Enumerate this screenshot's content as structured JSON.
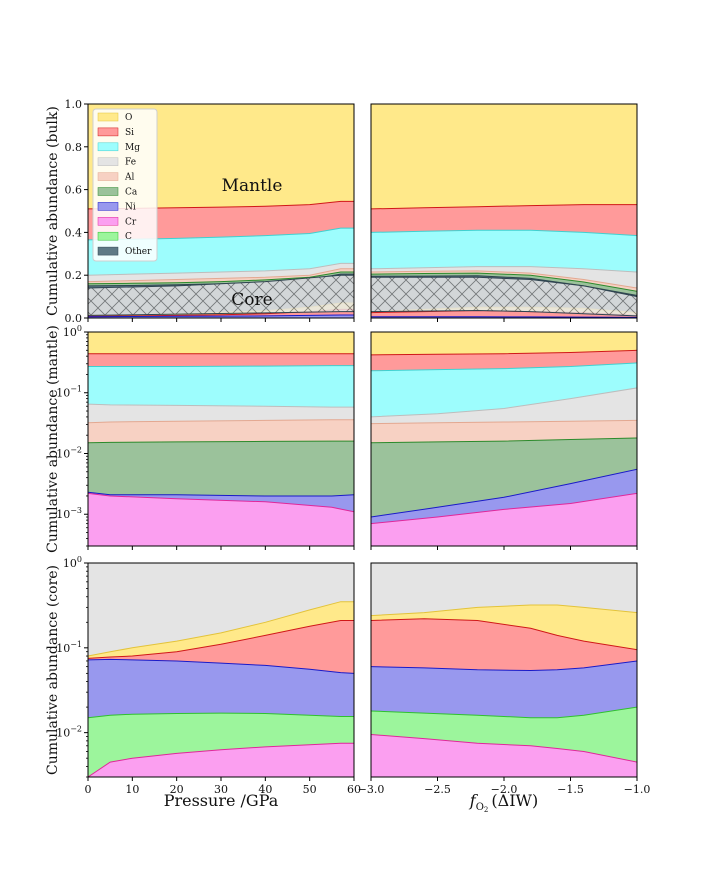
{
  "colors": {
    "O": {
      "fill": "#ffe98a",
      "line": "#e3c33a"
    },
    "Si": {
      "fill": "#ff9a9a",
      "line": "#d01818"
    },
    "Mg": {
      "fill": "#9dfdfd",
      "line": "#40d0d0"
    },
    "Fe": {
      "fill": "#e4e4e4",
      "line": "#bdbdbd"
    },
    "Al": {
      "fill": "#f7d1c3",
      "line": "#e3a891"
    },
    "Ca": {
      "fill": "#9bc29b",
      "line": "#2c8a2c"
    },
    "Ni": {
      "fill": "#9898ee",
      "line": "#1a1ac8"
    },
    "Cr": {
      "fill": "#fb9ff0",
      "line": "#e0279a"
    },
    "C": {
      "fill": "#9cf59c",
      "line": "#2fc02f"
    },
    "Other": {
      "fill": "#5e7a86",
      "line": "#2f4450"
    }
  },
  "chart_data": [
    {
      "id": "bulk-pressure",
      "type": "area",
      "stacked": true,
      "yscale": "linear",
      "ylabel": "Cumulative abundance (bulk)",
      "xlabel": "",
      "xlim": [
        0,
        60
      ],
      "ylim": [
        0,
        1
      ],
      "yticks": [
        "0.0",
        "0.2",
        "0.4",
        "0.6",
        "0.8",
        "1.0"
      ],
      "xticks": [],
      "legend": [
        "O",
        "Si",
        "Mg",
        "Fe",
        "Al",
        "Ca",
        "Ni",
        "Cr",
        "C",
        "Other"
      ],
      "legend_position": "top-left",
      "annotations": [
        {
          "text": "Mantle",
          "x": 38,
          "y": 0.62
        },
        {
          "text": "Core",
          "x": 38,
          "y": 0.09
        }
      ],
      "hatched_band": {
        "x": [
          0,
          20,
          40,
          57,
          60
        ],
        "lower": [
          0.012,
          0.018,
          0.024,
          0.03,
          0.03
        ],
        "upper": [
          0.14,
          0.15,
          0.17,
          0.2,
          0.2
        ]
      },
      "x": [
        0,
        10,
        20,
        30,
        40,
        50,
        57,
        60
      ],
      "series": [
        {
          "name": "O",
          "upper": [
            1,
            1,
            1,
            1,
            1,
            1,
            1,
            1
          ]
        },
        {
          "name": "Si",
          "upper": [
            0.51,
            0.512,
            0.515,
            0.518,
            0.522,
            0.53,
            0.545,
            0.545
          ]
        },
        {
          "name": "Mg",
          "upper": [
            0.365,
            0.368,
            0.372,
            0.378,
            0.385,
            0.395,
            0.42,
            0.42
          ]
        },
        {
          "name": "Fe",
          "upper": [
            0.2,
            0.205,
            0.21,
            0.215,
            0.22,
            0.23,
            0.255,
            0.255
          ]
        },
        {
          "name": "Al",
          "upper": [
            0.17,
            0.175,
            0.18,
            0.185,
            0.19,
            0.2,
            0.23,
            0.23
          ]
        },
        {
          "name": "Ca",
          "upper": [
            0.16,
            0.162,
            0.165,
            0.17,
            0.178,
            0.19,
            0.215,
            0.215
          ]
        },
        {
          "name": "Other",
          "upper": [
            0.15,
            0.152,
            0.155,
            0.16,
            0.168,
            0.18,
            0.205,
            0.205
          ]
        },
        {
          "name": "O",
          "upper": [
            0.012,
            0.016,
            0.02,
            0.026,
            0.034,
            0.05,
            0.07,
            0.07
          ]
        },
        {
          "name": "Si",
          "upper": [
            0.008,
            0.01,
            0.012,
            0.015,
            0.02,
            0.03,
            0.04,
            0.04
          ]
        },
        {
          "name": "Ni",
          "upper": [
            0.006,
            0.007,
            0.008,
            0.009,
            0.01,
            0.012,
            0.014,
            0.014
          ]
        }
      ]
    },
    {
      "id": "bulk-fo2",
      "type": "area",
      "stacked": true,
      "yscale": "linear",
      "ylabel": "",
      "xlabel": "",
      "xlim": [
        -3.0,
        -1.0
      ],
      "ylim": [
        0,
        1
      ],
      "yticks": [],
      "xticks": [],
      "hatched_band": {
        "x": [
          -3.0,
          -2.2,
          -1.8,
          -1.4,
          -1.0
        ],
        "lower": [
          0.03,
          0.035,
          0.03,
          0.02,
          0.01
        ],
        "upper": [
          0.19,
          0.19,
          0.18,
          0.15,
          0.1
        ]
      },
      "x": [
        -3.0,
        -2.6,
        -2.2,
        -1.8,
        -1.4,
        -1.0
      ],
      "series": [
        {
          "name": "O",
          "upper": [
            1,
            1,
            1,
            1,
            1,
            1
          ]
        },
        {
          "name": "Si",
          "upper": [
            0.51,
            0.515,
            0.52,
            0.525,
            0.53,
            0.53
          ]
        },
        {
          "name": "Mg",
          "upper": [
            0.4,
            0.405,
            0.41,
            0.41,
            0.4,
            0.385
          ]
        },
        {
          "name": "Fe",
          "upper": [
            0.23,
            0.235,
            0.24,
            0.24,
            0.23,
            0.215
          ]
        },
        {
          "name": "Al",
          "upper": [
            0.215,
            0.218,
            0.22,
            0.21,
            0.18,
            0.14
          ]
        },
        {
          "name": "Ca",
          "upper": [
            0.205,
            0.208,
            0.21,
            0.2,
            0.168,
            0.125
          ]
        },
        {
          "name": "Other",
          "upper": [
            0.195,
            0.196,
            0.197,
            0.185,
            0.15,
            0.105
          ]
        },
        {
          "name": "O",
          "upper": [
            0.03,
            0.04,
            0.05,
            0.05,
            0.045,
            0.025
          ]
        },
        {
          "name": "Si",
          "upper": [
            0.025,
            0.03,
            0.035,
            0.03,
            0.025,
            0.012
          ]
        },
        {
          "name": "Ni",
          "upper": [
            0.006,
            0.006,
            0.006,
            0.005,
            0.004,
            0.003
          ]
        }
      ]
    },
    {
      "id": "mantle-pressure",
      "type": "area",
      "stacked": true,
      "yscale": "log",
      "ylabel": "Cumulative abundance (mantle)",
      "xlabel": "",
      "xlim": [
        0,
        60
      ],
      "ylim": [
        0.0003,
        1
      ],
      "yticks": [
        {
          "value": 0.001,
          "label": "10",
          "exp": "−3"
        },
        {
          "value": 0.01,
          "label": "10",
          "exp": "−2"
        },
        {
          "value": 0.1,
          "label": "10",
          "exp": "−1"
        },
        {
          "value": 1,
          "label": "10",
          "exp": "0"
        }
      ],
      "xticks": [],
      "x": [
        0,
        5,
        20,
        40,
        55,
        60
      ],
      "series": [
        {
          "name": "O",
          "upper": [
            1,
            1,
            1,
            1,
            1,
            1
          ]
        },
        {
          "name": "Si",
          "upper": [
            0.44,
            0.44,
            0.44,
            0.44,
            0.44,
            0.44
          ]
        },
        {
          "name": "Mg",
          "upper": [
            0.27,
            0.27,
            0.27,
            0.275,
            0.28,
            0.28
          ]
        },
        {
          "name": "Fe",
          "upper": [
            0.065,
            0.063,
            0.062,
            0.06,
            0.058,
            0.058
          ]
        },
        {
          "name": "Al",
          "upper": [
            0.032,
            0.033,
            0.034,
            0.035,
            0.036,
            0.036
          ]
        },
        {
          "name": "Ca",
          "upper": [
            0.015,
            0.0152,
            0.0155,
            0.0158,
            0.016,
            0.016
          ]
        },
        {
          "name": "Ni",
          "upper": [
            0.0023,
            0.0021,
            0.0021,
            0.002,
            0.002,
            0.0021
          ]
        },
        {
          "name": "Cr",
          "upper": [
            0.0022,
            0.002,
            0.0018,
            0.0016,
            0.0013,
            0.0011
          ]
        }
      ]
    },
    {
      "id": "mantle-fo2",
      "type": "area",
      "stacked": true,
      "yscale": "log",
      "ylabel": "",
      "xlabel": "",
      "xlim": [
        -3.0,
        -1.0
      ],
      "ylim": [
        0.0003,
        1
      ],
      "yticks": [],
      "xticks": [],
      "x": [
        -3.0,
        -2.5,
        -2.0,
        -1.5,
        -1.0
      ],
      "series": [
        {
          "name": "O",
          "upper": [
            1,
            1,
            1,
            1,
            1
          ]
        },
        {
          "name": "Si",
          "upper": [
            0.42,
            0.43,
            0.44,
            0.46,
            0.5
          ]
        },
        {
          "name": "Mg",
          "upper": [
            0.23,
            0.24,
            0.25,
            0.27,
            0.31
          ]
        },
        {
          "name": "Fe",
          "upper": [
            0.04,
            0.045,
            0.055,
            0.08,
            0.12
          ]
        },
        {
          "name": "Al",
          "upper": [
            0.031,
            0.032,
            0.033,
            0.034,
            0.035
          ]
        },
        {
          "name": "Ca",
          "upper": [
            0.015,
            0.0155,
            0.016,
            0.017,
            0.018
          ]
        },
        {
          "name": "Ni",
          "upper": [
            0.0009,
            0.0013,
            0.0019,
            0.0032,
            0.0055
          ]
        },
        {
          "name": "Cr",
          "upper": [
            0.0007,
            0.0009,
            0.0012,
            0.0015,
            0.0022
          ]
        }
      ]
    },
    {
      "id": "core-pressure",
      "type": "area",
      "stacked": true,
      "yscale": "log",
      "ylabel": "Cumulative abundance (core)",
      "xlabel": "Pressure /GPa",
      "xlim": [
        0,
        60
      ],
      "ylim": [
        0.003,
        1
      ],
      "yticks": [
        {
          "value": 0.01,
          "label": "10",
          "exp": "−2"
        },
        {
          "value": 0.1,
          "label": "10",
          "exp": "−1"
        },
        {
          "value": 1,
          "label": "10",
          "exp": "0"
        }
      ],
      "xticks": [
        "0",
        "10",
        "20",
        "30",
        "40",
        "50",
        "60"
      ],
      "x": [
        0,
        5,
        10,
        20,
        30,
        40,
        50,
        57,
        60
      ],
      "series": [
        {
          "name": "Fe",
          "upper": [
            1,
            1,
            1,
            1,
            1,
            1,
            1,
            1,
            1
          ]
        },
        {
          "name": "O",
          "upper": [
            0.08,
            0.09,
            0.1,
            0.12,
            0.15,
            0.2,
            0.28,
            0.35,
            0.35
          ]
        },
        {
          "name": "Si",
          "upper": [
            0.075,
            0.078,
            0.08,
            0.09,
            0.11,
            0.14,
            0.18,
            0.21,
            0.21
          ]
        },
        {
          "name": "Ni",
          "upper": [
            0.072,
            0.073,
            0.072,
            0.07,
            0.066,
            0.062,
            0.056,
            0.051,
            0.05
          ]
        },
        {
          "name": "C",
          "upper": [
            0.015,
            0.016,
            0.0165,
            0.0168,
            0.017,
            0.0168,
            0.016,
            0.0155,
            0.0155
          ]
        },
        {
          "name": "Cr",
          "upper": [
            0.003,
            0.0045,
            0.005,
            0.0057,
            0.0063,
            0.0068,
            0.0072,
            0.0075,
            0.0075
          ]
        }
      ]
    },
    {
      "id": "core-fo2",
      "type": "area",
      "stacked": true,
      "yscale": "log",
      "ylabel": "",
      "xlabel": "f_O2 (ΔIW)",
      "xlim": [
        -3.0,
        -1.0
      ],
      "ylim": [
        0.003,
        1
      ],
      "yticks": [],
      "xticks": [
        "−3.0",
        "−2.5",
        "−2.0",
        "−1.5",
        "−1.0"
      ],
      "x": [
        -3.0,
        -2.6,
        -2.2,
        -1.8,
        -1.6,
        -1.4,
        -1.0
      ],
      "series": [
        {
          "name": "Fe",
          "upper": [
            1,
            1,
            1,
            1,
            1,
            1,
            1
          ]
        },
        {
          "name": "O",
          "upper": [
            0.24,
            0.26,
            0.3,
            0.32,
            0.32,
            0.3,
            0.26
          ]
        },
        {
          "name": "Si",
          "upper": [
            0.21,
            0.22,
            0.21,
            0.17,
            0.14,
            0.12,
            0.095
          ]
        },
        {
          "name": "Ni",
          "upper": [
            0.06,
            0.058,
            0.055,
            0.054,
            0.055,
            0.058,
            0.07
          ]
        },
        {
          "name": "C",
          "upper": [
            0.018,
            0.017,
            0.016,
            0.015,
            0.015,
            0.016,
            0.02
          ]
        },
        {
          "name": "Cr",
          "upper": [
            0.0095,
            0.0085,
            0.0075,
            0.007,
            0.0065,
            0.006,
            0.0045
          ]
        }
      ]
    }
  ]
}
